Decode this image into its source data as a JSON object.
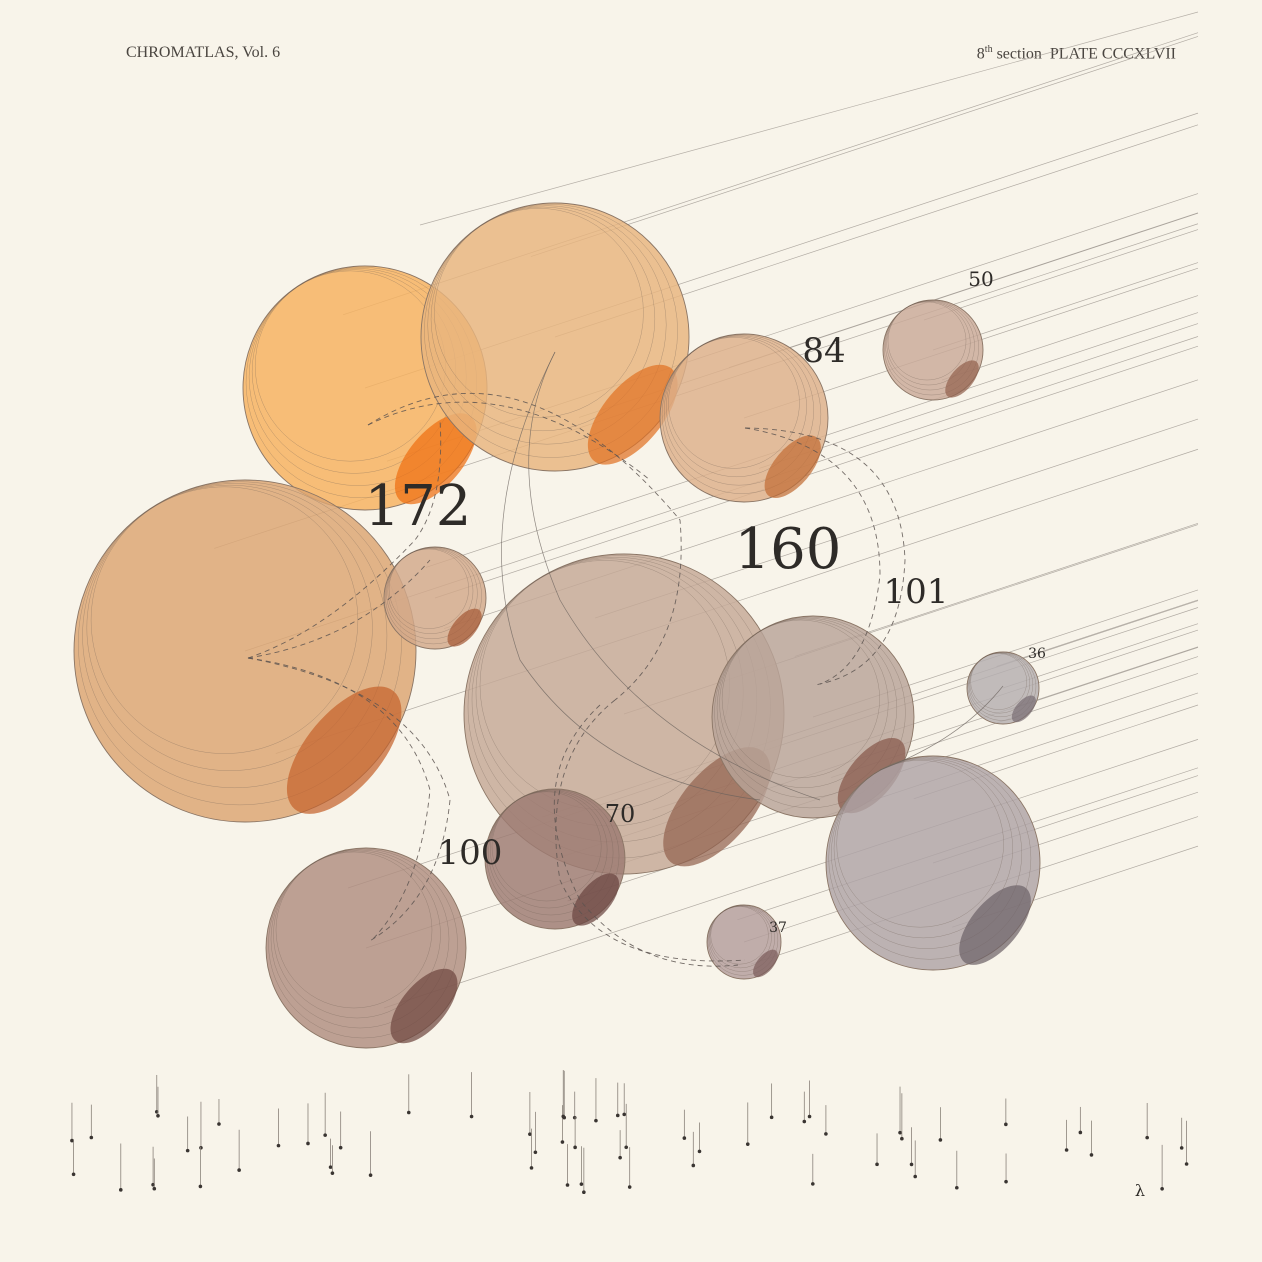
{
  "header": {
    "title": "CHROMATLAS, Vol. 6",
    "section_number": "8",
    "section_suffix": "th",
    "section_word": "section",
    "plate": "PLATE CCCXLVII"
  },
  "bubbles": [
    {
      "value": "172",
      "fill": "#f6b15e",
      "shadow": "#ee6f12"
    },
    {
      "value": "160",
      "fill": "#e8b57e",
      "shadow": "#e07124"
    },
    {
      "value": "84",
      "fill": "#ddb08a",
      "shadow": "#c26e36"
    },
    {
      "value": "50",
      "fill": "#c9aa98",
      "shadow": "#93634f"
    },
    {
      "value": "",
      "fill": "#dca572",
      "shadow": "#c5622c"
    },
    {
      "value": "",
      "fill": "#d2a88a",
      "shadow": "#a55a38"
    },
    {
      "value": "",
      "fill": "#c5a896",
      "shadow": "#93624f"
    },
    {
      "value": "101",
      "fill": "#b8a399",
      "shadow": "#86584b"
    },
    {
      "value": "36",
      "fill": "#b5aeb0",
      "shadow": "#7a6f74"
    },
    {
      "value": "",
      "fill": "#aea3a6",
      "shadow": "#6e6268"
    },
    {
      "value": "70",
      "fill": "#9c7a72",
      "shadow": "#6b4541"
    },
    {
      "value": "100",
      "fill": "#b08e80",
      "shadow": "#6f4640"
    },
    {
      "value": "37",
      "fill": "#b39e9c",
      "shadow": "#7c5d5c"
    }
  ],
  "footer": {
    "symbol": "λ"
  }
}
